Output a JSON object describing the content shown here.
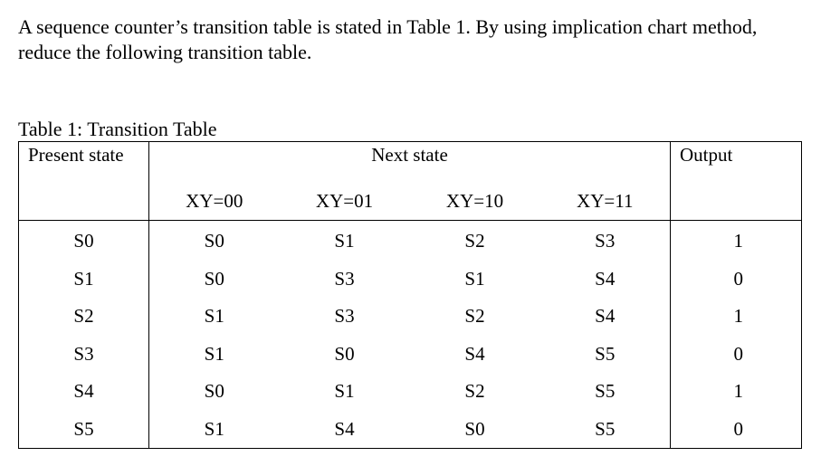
{
  "question": "A sequence counter’s transition table is stated in Table 1. By using implication chart method, reduce the following transition table.",
  "table": {
    "caption": "Table 1: Transition Table",
    "headers": {
      "present": "Present state",
      "next": "Next state",
      "output": "Output"
    },
    "inputs": [
      "XY=00",
      "XY=01",
      "XY=10",
      "XY=11"
    ],
    "rows": [
      {
        "present": "S0",
        "next": [
          "S0",
          "S1",
          "S2",
          "S3"
        ],
        "output": "1"
      },
      {
        "present": "S1",
        "next": [
          "S0",
          "S3",
          "S1",
          "S4"
        ],
        "output": "0"
      },
      {
        "present": "S2",
        "next": [
          "S1",
          "S3",
          "S2",
          "S4"
        ],
        "output": "1"
      },
      {
        "present": "S3",
        "next": [
          "S1",
          "S0",
          "S4",
          "S5"
        ],
        "output": "0"
      },
      {
        "present": "S4",
        "next": [
          "S0",
          "S1",
          "S2",
          "S5"
        ],
        "output": "1"
      },
      {
        "present": "S5",
        "next": [
          "S1",
          "S4",
          "S0",
          "S5"
        ],
        "output": "0"
      }
    ]
  }
}
